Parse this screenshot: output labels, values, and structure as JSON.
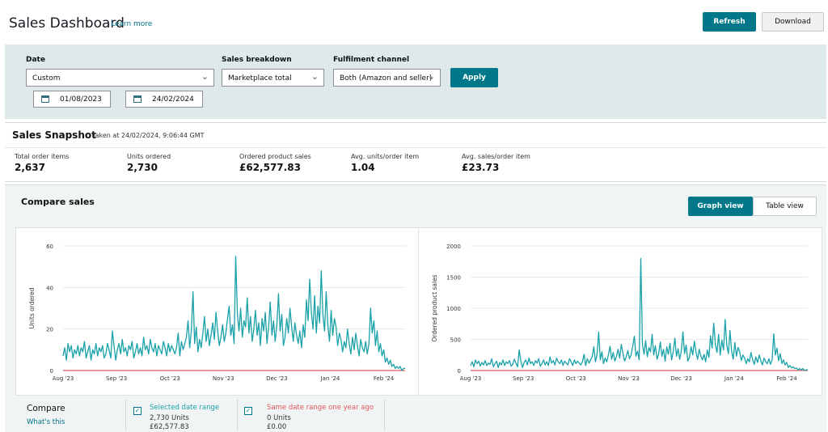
{
  "header": {
    "title": "Sales Dashboard",
    "learn_more": "Learn more",
    "refresh_label": "Refresh",
    "download_label": "Download"
  },
  "filters": {
    "date_label": "Date",
    "date_value": "Custom",
    "start_date": "01/08/2023",
    "end_date": "24/02/2024",
    "breakdown_label": "Sales breakdown",
    "breakdown_value": "Marketplace total",
    "fulfilment_label": "Fulfilment channel",
    "fulfilment_value": "Both (Amazon and seller)",
    "apply_label": "Apply"
  },
  "snapshot": {
    "title": "Sales Snapshot",
    "taken": "Taken at 24/02/2024, 9:06:44 GMT",
    "metrics": [
      {
        "label": "Total order items",
        "value": "2,637"
      },
      {
        "label": "Units ordered",
        "value": "2,730"
      },
      {
        "label": "Ordered product sales",
        "value": "£62,577.83"
      },
      {
        "label": "Avg. units/order item",
        "value": "1.04"
      },
      {
        "label": "Avg. sales/order item",
        "value": "£23.73"
      }
    ]
  },
  "compare": {
    "title": "Compare sales",
    "graph_view_label": "Graph view",
    "table_view_label": "Table view",
    "compare_label": "Compare",
    "whats_this": "What's this",
    "legend": [
      {
        "label": "Selected date range",
        "units": "2,730 Units",
        "sales": "£62,577.83",
        "color": "#1aa1a9"
      },
      {
        "label": "Same date range one year ago",
        "units": "0 Units",
        "sales": "£0.00",
        "color": "#e15759"
      }
    ]
  },
  "colors": {
    "accent": "#00788a",
    "series_current": "#1aa1a9",
    "series_previous": "#e15759"
  },
  "chart_data": [
    {
      "type": "line",
      "ylabel": "Units ordered",
      "ylim": [
        0,
        60
      ],
      "yticks": [
        0,
        20,
        40,
        60
      ],
      "xticks": [
        "Aug '23",
        "Sep '23",
        "Oct '23",
        "Nov '23",
        "Dec '23",
        "Jan '24",
        "Feb '24"
      ],
      "x_start": "2023-08-01",
      "x_end": "2024-02-24",
      "series": [
        {
          "name": "Selected date range",
          "values": [
            7,
            11,
            5,
            13,
            9,
            12,
            6,
            10,
            8,
            12,
            7,
            11,
            9,
            14,
            6,
            9,
            12,
            5,
            10,
            8,
            13,
            7,
            11,
            9,
            12,
            6,
            8,
            13,
            10,
            6,
            19,
            12,
            5,
            10,
            13,
            8,
            15,
            9,
            11,
            7,
            12,
            10,
            14,
            6,
            9,
            13,
            8,
            11,
            7,
            16,
            10,
            12,
            8,
            15,
            11,
            9,
            13,
            7,
            12,
            10,
            8,
            14,
            11,
            7,
            13,
            9,
            12,
            10,
            8,
            11,
            18,
            7,
            14,
            10,
            13,
            16,
            24,
            11,
            19,
            38,
            13,
            21,
            9,
            15,
            11,
            18,
            26,
            14,
            20,
            12,
            17,
            23,
            15,
            28,
            19,
            12,
            16,
            22,
            14,
            18,
            25,
            31,
            17,
            22,
            13,
            55,
            27,
            19,
            30,
            16,
            24,
            21,
            35,
            18,
            26,
            14,
            20,
            29,
            17,
            23,
            12,
            25,
            19,
            28,
            13,
            21,
            33,
            17,
            24,
            14,
            22,
            37,
            19,
            27,
            12,
            16,
            25,
            18,
            30,
            21,
            14,
            23,
            17,
            13,
            19,
            11,
            22,
            16,
            34,
            24,
            44,
            28,
            20,
            36,
            18,
            31,
            23,
            48,
            27,
            19,
            38,
            22,
            14,
            29,
            17,
            25,
            21,
            12,
            18,
            15,
            9,
            14,
            11,
            20,
            13,
            8,
            16,
            10,
            18,
            12,
            7,
            15,
            11,
            9,
            14,
            8,
            13,
            30,
            18,
            24,
            12,
            19,
            9,
            13,
            7,
            10,
            4,
            6,
            3,
            5,
            2,
            3,
            1,
            2,
            1,
            2,
            0,
            1,
            1
          ]
        },
        {
          "name": "Same date range one year ago",
          "values": [
            0,
            0
          ]
        }
      ]
    },
    {
      "type": "line",
      "ylabel": "Ordered product sales",
      "ylim": [
        0,
        2000
      ],
      "yticks": [
        0,
        500,
        1000,
        1500,
        2000
      ],
      "xticks": [
        "Aug '23",
        "Sep '23",
        "Oct '23",
        "Nov '23",
        "Dec '23",
        "Jan '24",
        "Feb '24"
      ],
      "x_start": "2023-08-01",
      "x_end": "2024-02-24",
      "series": [
        {
          "name": "Selected date range",
          "values": [
            80,
            140,
            60,
            170,
            110,
            150,
            70,
            130,
            90,
            160,
            80,
            120,
            100,
            190,
            60,
            110,
            150,
            50,
            130,
            90,
            170,
            80,
            140,
            110,
            160,
            70,
            100,
            180,
            120,
            60,
            330,
            150,
            50,
            130,
            170,
            90,
            200,
            110,
            140,
            80,
            160,
            120,
            190,
            70,
            110,
            170,
            90,
            140,
            80,
            220,
            120,
            160,
            90,
            200,
            140,
            110,
            170,
            80,
            150,
            120,
            90,
            190,
            140,
            80,
            170,
            110,
            150,
            120,
            90,
            140,
            260,
            80,
            190,
            120,
            170,
            220,
            380,
            140,
            260,
            620,
            170,
            300,
            110,
            200,
            140,
            250,
            390,
            180,
            290,
            150,
            230,
            340,
            200,
            420,
            270,
            150,
            220,
            320,
            190,
            250,
            390,
            550,
            230,
            310,
            170,
            1800,
            420,
            260,
            480,
            220,
            370,
            300,
            580,
            250,
            400,
            180,
            270,
            460,
            230,
            340,
            150,
            380,
            260,
            440,
            170,
            300,
            520,
            230,
            350,
            180,
            320,
            620,
            270,
            410,
            150,
            210,
            380,
            250,
            470,
            300,
            180,
            340,
            230,
            170,
            260,
            140,
            330,
            210,
            560,
            360,
            760,
            420,
            290,
            580,
            250,
            490,
            330,
            820,
            410,
            270,
            640,
            310,
            180,
            450,
            230,
            370,
            300,
            160,
            250,
            200,
            110,
            190,
            140,
            290,
            170,
            100,
            220,
            130,
            250,
            160,
            90,
            200,
            140,
            110,
            190,
            100,
            170,
            590,
            250,
            360,
            160,
            270,
            110,
            170,
            90,
            130,
            50,
            80,
            40,
            60,
            30,
            40,
            10,
            30,
            10,
            30,
            0,
            10,
            10
          ]
        },
        {
          "name": "Same date range one year ago",
          "values": [
            0,
            0
          ]
        }
      ]
    }
  ]
}
